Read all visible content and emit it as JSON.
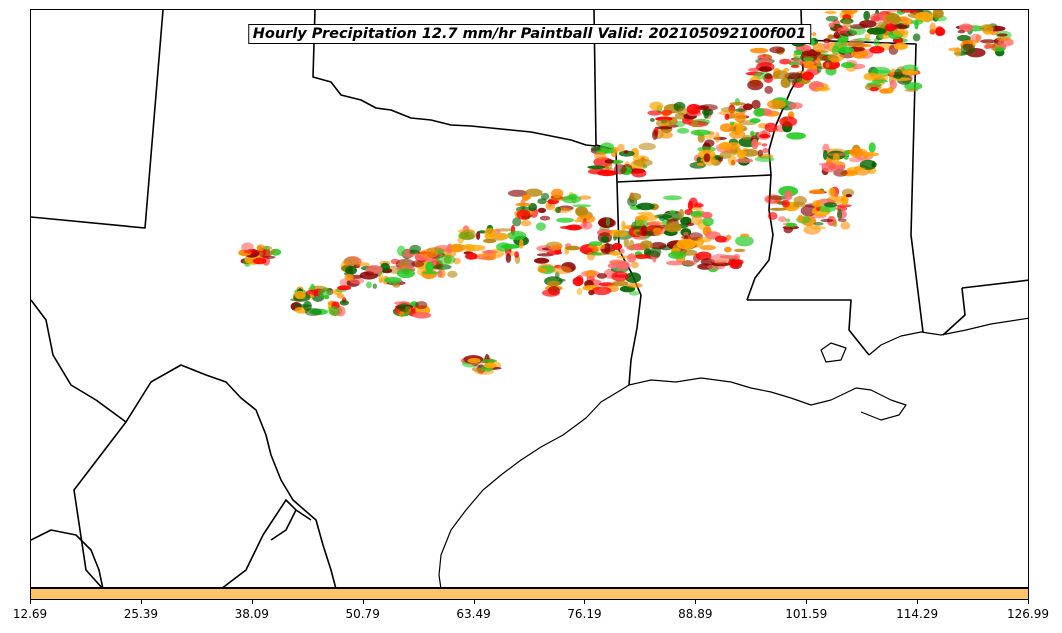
{
  "title": "Hourly Precipitation 12.7 mm/hr Paintball Valid: 202105092100f001",
  "colors": {
    "colorbar": "#fec46a",
    "paintball": [
      "#ff8c00",
      "#ff0000",
      "#8b0000",
      "#22cc22",
      "#006400",
      "#b8860b",
      "#ff6666",
      "#ffa500"
    ],
    "boundary": "#000000"
  },
  "colorbar": {
    "ticks": [
      "12.69",
      "25.39",
      "38.09",
      "50.79",
      "63.49",
      "76.19",
      "88.89",
      "101.59",
      "114.29",
      "126.99"
    ]
  }
}
